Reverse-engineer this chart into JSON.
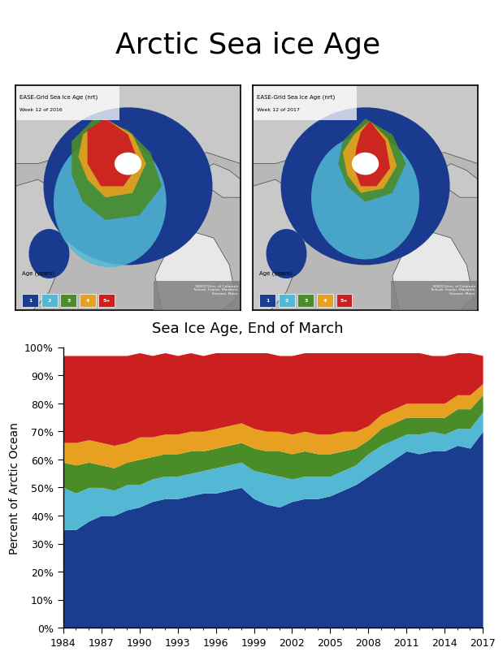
{
  "title": "Arctic Sea ice Age",
  "subtitle": "Sea Ice Age, End of March",
  "ylabel": "Percent of Arctic Ocean",
  "years": [
    1984,
    1985,
    1986,
    1987,
    1988,
    1989,
    1990,
    1991,
    1992,
    1993,
    1994,
    1995,
    1996,
    1997,
    1998,
    1999,
    2000,
    2001,
    2002,
    2003,
    2004,
    2005,
    2006,
    2007,
    2008,
    2009,
    2010,
    2011,
    2012,
    2013,
    2014,
    2015,
    2016,
    2017
  ],
  "age1": [
    35,
    35,
    38,
    40,
    40,
    42,
    43,
    45,
    46,
    46,
    47,
    48,
    48,
    49,
    50,
    46,
    44,
    43,
    45,
    46,
    46,
    47,
    49,
    51,
    54,
    57,
    60,
    63,
    62,
    63,
    63,
    65,
    64,
    70
  ],
  "age2": [
    15,
    13,
    12,
    10,
    9,
    9,
    8,
    8,
    8,
    8,
    8,
    8,
    9,
    9,
    9,
    10,
    11,
    11,
    8,
    8,
    8,
    7,
    7,
    7,
    8,
    8,
    7,
    6,
    7,
    7,
    6,
    6,
    7,
    7
  ],
  "age3": [
    9,
    10,
    9,
    8,
    8,
    8,
    9,
    8,
    8,
    8,
    8,
    7,
    7,
    7,
    7,
    8,
    8,
    9,
    9,
    9,
    8,
    8,
    7,
    6,
    5,
    6,
    6,
    6,
    6,
    5,
    6,
    7,
    7,
    6
  ],
  "age4": [
    7,
    8,
    8,
    8,
    8,
    7,
    8,
    7,
    7,
    7,
    7,
    7,
    7,
    7,
    7,
    7,
    7,
    7,
    7,
    7,
    7,
    7,
    7,
    6,
    5,
    5,
    5,
    5,
    5,
    5,
    5,
    5,
    5,
    4
  ],
  "age5": [
    31,
    31,
    30,
    31,
    32,
    31,
    30,
    29,
    29,
    28,
    28,
    27,
    27,
    26,
    25,
    27,
    28,
    27,
    28,
    28,
    29,
    29,
    28,
    28,
    26,
    22,
    20,
    18,
    18,
    17,
    17,
    15,
    15,
    10
  ],
  "colors_stack": [
    "#1b3d8f",
    "#52b8d4",
    "#4a8c28",
    "#e8a020",
    "#cc2020"
  ],
  "age_labels": [
    "1",
    "2",
    "3",
    "4",
    "5+"
  ],
  "ytick_vals": [
    0.0,
    0.1,
    0.2,
    0.3,
    0.4,
    0.5,
    0.6,
    0.7,
    0.8,
    0.9,
    1.0
  ],
  "ytick_labels": [
    "0%",
    "10%",
    "20%",
    "30%",
    "40%",
    "50%",
    "60%",
    "70%",
    "80%",
    "90%",
    "100%"
  ],
  "xtick_years": [
    1984,
    1987,
    1990,
    1993,
    1996,
    1999,
    2002,
    2005,
    2008,
    2011,
    2014,
    2017
  ],
  "map_bg": "#b8b8b8",
  "ocean_color": "#1a3a8f",
  "land_color": "#c8c8c8",
  "land_edge": "#444444"
}
